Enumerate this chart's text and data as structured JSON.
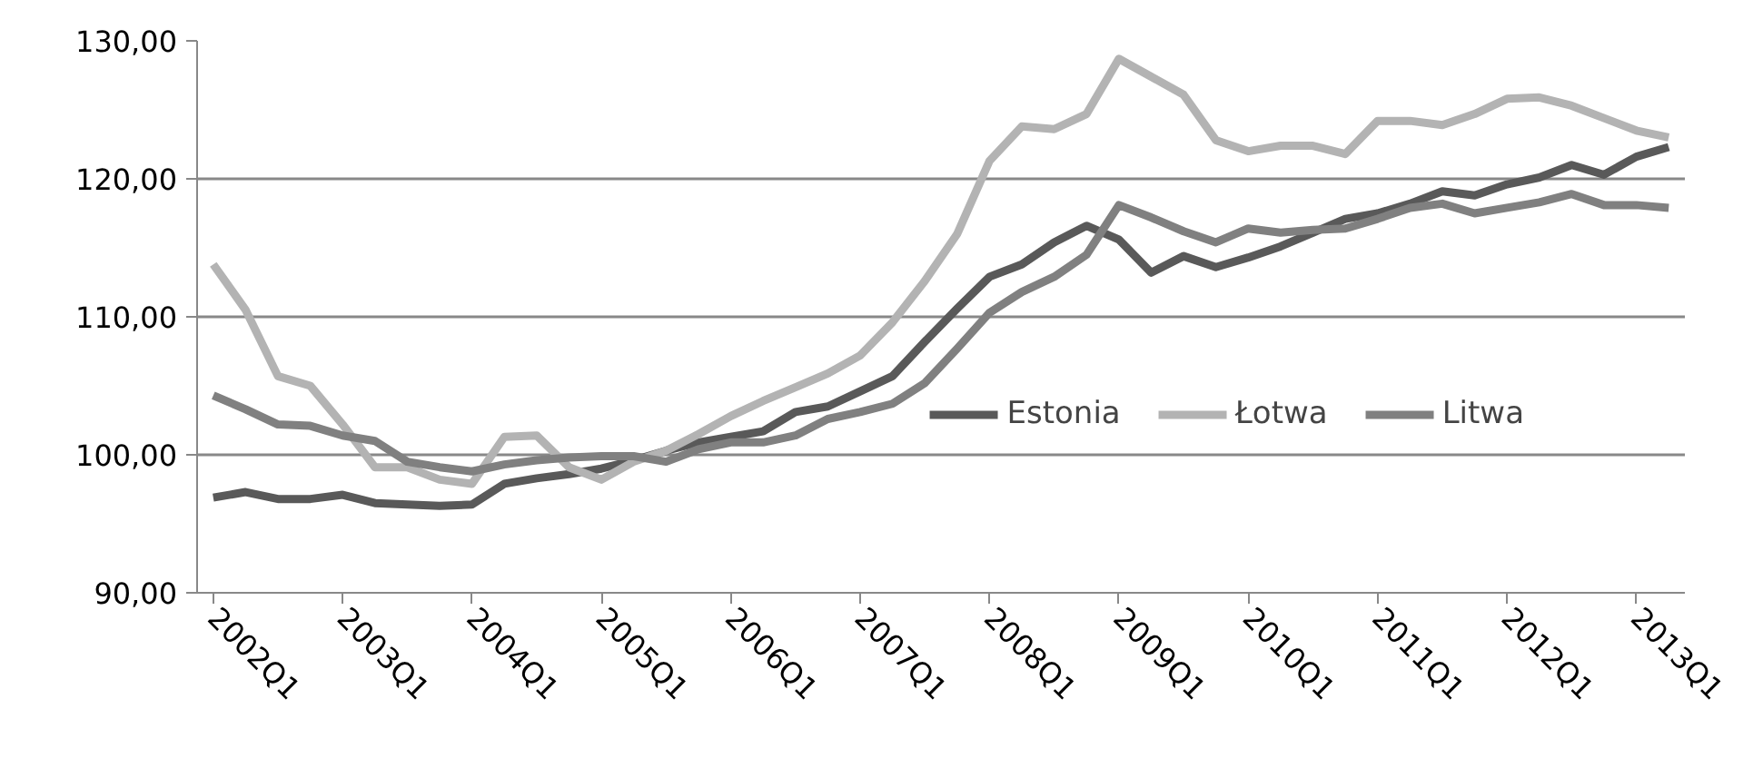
{
  "chart_data": {
    "type": "line",
    "categories": [
      "2002Q1",
      null,
      null,
      null,
      "2003Q1",
      null,
      null,
      null,
      "2004Q1",
      null,
      null,
      null,
      "2005Q1",
      null,
      null,
      null,
      "2006Q1",
      null,
      null,
      null,
      "2007Q1",
      null,
      null,
      null,
      "2008Q1",
      null,
      null,
      null,
      "2009Q1",
      null,
      null,
      null,
      "2010Q1",
      null,
      null,
      null,
      "2011Q1",
      null,
      null,
      null,
      "2012Q1",
      null,
      null,
      null,
      "2013Q1",
      null
    ],
    "series": [
      {
        "name": "Estonia",
        "color": "#595959",
        "values": [
          96.9,
          97.3,
          96.8,
          96.8,
          97.1,
          96.5,
          96.4,
          96.3,
          96.4,
          97.9,
          98.3,
          98.6,
          99.0,
          99.6,
          100.3,
          100.9,
          101.3,
          101.7,
          103.1,
          103.5,
          104.6,
          105.7,
          108.2,
          110.6,
          112.9,
          113.8,
          115.4,
          116.6,
          115.6,
          113.2,
          114.4,
          113.6,
          114.3,
          115.1,
          116.1,
          117.1,
          117.5,
          118.2,
          119.1,
          118.8,
          119.6,
          120.1,
          121.0,
          120.3,
          121.6,
          122.3
        ]
      },
      {
        "name": "Łotwa",
        "color": "#b3b3b3",
        "values": [
          113.8,
          110.5,
          105.7,
          105.0,
          102.2,
          99.1,
          99.1,
          98.2,
          97.9,
          101.3,
          101.4,
          99.1,
          98.2,
          99.5,
          100.3,
          101.5,
          102.8,
          103.9,
          104.9,
          105.9,
          107.2,
          109.6,
          112.6,
          116.0,
          121.3,
          123.8,
          123.6,
          124.7,
          128.7,
          127.4,
          126.1,
          122.8,
          122.0,
          122.4,
          122.4,
          121.8,
          124.2,
          124.2,
          123.9,
          124.7,
          125.8,
          125.9,
          125.3,
          124.4,
          123.5,
          123.0
        ]
      },
      {
        "name": "Litwa",
        "color": "#808080",
        "values": [
          104.3,
          103.3,
          102.2,
          102.1,
          101.4,
          101.0,
          99.5,
          99.1,
          98.8,
          99.3,
          99.6,
          99.8,
          99.9,
          99.9,
          99.5,
          100.4,
          100.9,
          100.9,
          101.4,
          102.6,
          103.1,
          103.7,
          105.2,
          107.7,
          110.3,
          111.8,
          112.9,
          114.5,
          118.1,
          117.2,
          116.2,
          115.4,
          116.4,
          116.1,
          116.3,
          116.4,
          117.1,
          117.9,
          118.2,
          117.5,
          117.9,
          118.3,
          118.9,
          118.1,
          118.1,
          117.9
        ]
      }
    ],
    "ylim": [
      90,
      130
    ],
    "yticks": [
      {
        "value": 90,
        "label": "90,00"
      },
      {
        "value": 100,
        "label": "100,00"
      },
      {
        "value": 110,
        "label": "110,00"
      },
      {
        "value": 120,
        "label": "120,00"
      },
      {
        "value": 130,
        "label": "130,00"
      }
    ],
    "grid": "y",
    "legend": "right",
    "marker": "none",
    "line_style": "solid"
  }
}
